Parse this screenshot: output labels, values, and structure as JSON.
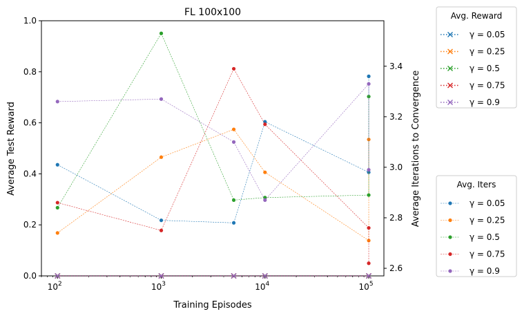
{
  "chart_data": {
    "type": "line",
    "title": "FL 100x100",
    "xlabel": "Training Episodes",
    "ylabel_left": "Average Test Reward",
    "ylabel_right": "Average Iterations to Convergence",
    "x_scale": "log",
    "xlim": [
      70,
      140000
    ],
    "x_ticks": [
      100,
      1000,
      10000,
      100000
    ],
    "x_tick_labels": [
      [
        "10",
        "2"
      ],
      [
        "10",
        "3"
      ],
      [
        "10",
        "4"
      ],
      [
        "10",
        "5"
      ]
    ],
    "ylim_left": [
      0.0,
      1.0
    ],
    "y_ticks_left": [
      "0.0",
      "0.2",
      "0.4",
      "0.6",
      "0.8",
      "1.0"
    ],
    "ylim_right": [
      2.57,
      3.58
    ],
    "y_ticks_right": [
      "2.6",
      "2.8",
      "3.0",
      "3.2",
      "3.4"
    ],
    "grid": false,
    "x": [
      100,
      1000,
      5000,
      10000,
      100000
    ],
    "reward_series": [
      {
        "name": "γ = 0.05",
        "color": "#1f77b4",
        "values": [
          0,
          0,
          0,
          0,
          0
        ]
      },
      {
        "name": "γ = 0.25",
        "color": "#ff7f0e",
        "values": [
          0,
          0,
          0,
          0,
          0
        ]
      },
      {
        "name": "γ = 0.5",
        "color": "#2ca02c",
        "values": [
          0,
          0,
          0,
          0,
          0
        ]
      },
      {
        "name": "γ = 0.75",
        "color": "#d62728",
        "values": [
          0,
          0,
          0,
          0,
          0
        ]
      },
      {
        "name": "γ = 0.9",
        "color": "#9467bd",
        "values": [
          0,
          0,
          0,
          0,
          0
        ]
      }
    ],
    "iter_series": [
      {
        "name": "γ = 0.05",
        "color": "#1f77b4",
        "values": [
          3.01,
          2.79,
          2.78,
          3.18,
          2.98
        ],
        "extra_at_last_x": [
          3.36
        ]
      },
      {
        "name": "γ = 0.25",
        "color": "#ff7f0e",
        "values": [
          2.74,
          3.04,
          3.15,
          2.98,
          2.71
        ],
        "extra_at_last_x": [
          3.11
        ]
      },
      {
        "name": "γ = 0.5",
        "color": "#2ca02c",
        "values": [
          2.84,
          3.53,
          2.87,
          2.88,
          2.89
        ],
        "extra_at_last_x": [
          3.28
        ]
      },
      {
        "name": "γ = 0.75",
        "color": "#d62728",
        "values": [
          2.86,
          2.75,
          3.39,
          3.17,
          2.76
        ],
        "extra_at_last_x": [
          2.62
        ]
      },
      {
        "name": "γ = 0.9",
        "color": "#9467bd",
        "values": [
          3.26,
          3.27,
          3.1,
          2.87,
          3.33
        ],
        "extra_at_last_x": [
          2.99
        ]
      }
    ],
    "legend_reward": {
      "title": "Avg. Reward",
      "placement": "upper-right-outside"
    },
    "legend_iters": {
      "title": "Avg. Iters",
      "placement": "lower-right-outside"
    }
  }
}
